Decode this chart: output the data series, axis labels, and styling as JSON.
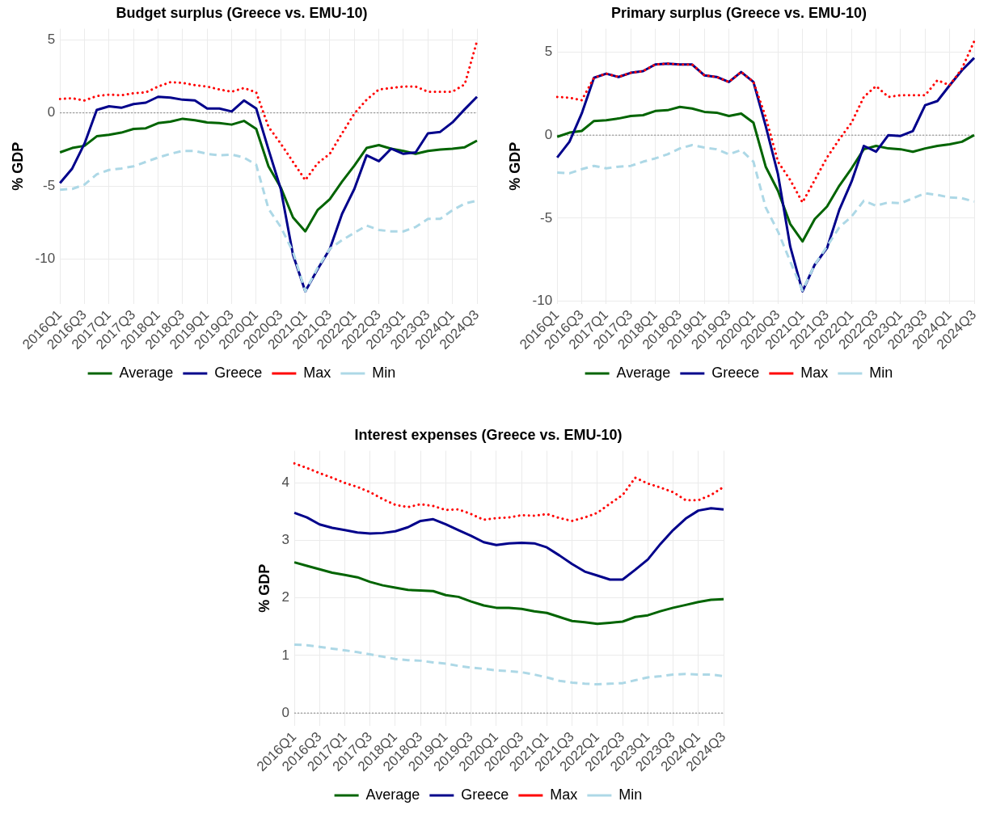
{
  "chart_data": [
    {
      "type": "line",
      "title": "Budget surplus (Greece vs. EMU-10)",
      "ylabel": "% GDP",
      "categories": [
        "2016Q1",
        null,
        "2016Q3",
        null,
        "2017Q1",
        null,
        "2017Q3",
        null,
        "2018Q1",
        null,
        "2018Q3",
        null,
        "2019Q1",
        null,
        "2019Q3",
        null,
        "2020Q1",
        null,
        "2020Q3",
        null,
        "2021Q1",
        null,
        "2021Q3",
        null,
        "2022Q1",
        null,
        "2022Q3",
        null,
        "2023Q1",
        null,
        "2023Q3",
        null,
        "2024Q1",
        null,
        "2024Q3"
      ],
      "series": [
        {
          "name": "Average",
          "color": "#006400",
          "line_style": "solid",
          "values": [
            -2.7,
            -2.4,
            -2.25,
            -1.6,
            -1.5,
            -1.35,
            -1.1,
            -1.05,
            -0.7,
            -0.6,
            -0.4,
            -0.5,
            -0.65,
            -0.7,
            -0.8,
            -0.55,
            -1.1,
            -3.65,
            -5.1,
            -7.15,
            -8.1,
            -6.65,
            -5.9,
            -4.7,
            -3.6,
            -2.4,
            -2.2,
            -2.45,
            -2.6,
            -2.8,
            -2.6,
            -2.5,
            -2.45,
            -2.35,
            -1.9
          ]
        },
        {
          "name": "Greece",
          "color": "#00008b",
          "line_style": "solid",
          "values": [
            -4.8,
            -3.8,
            -2.1,
            0.2,
            0.45,
            0.35,
            0.6,
            0.7,
            1.1,
            1.05,
            0.9,
            0.85,
            0.3,
            0.3,
            0.1,
            0.85,
            0.3,
            -2.5,
            -5.2,
            -9.7,
            -12.2,
            -10.7,
            -9.3,
            -6.9,
            -5.2,
            -2.9,
            -3.3,
            -2.45,
            -2.8,
            -2.7,
            -1.4,
            -1.3,
            -0.65,
            0.25,
            1.1
          ]
        },
        {
          "name": "Max",
          "color": "#ff0000",
          "line_style": "dotted",
          "values": [
            0.95,
            1.0,
            0.85,
            1.15,
            1.25,
            1.2,
            1.35,
            1.4,
            1.8,
            2.1,
            2.05,
            1.9,
            1.8,
            1.6,
            1.45,
            1.7,
            1.4,
            -0.95,
            -2.1,
            -3.35,
            -4.6,
            -3.45,
            -2.8,
            -1.4,
            -0.05,
            0.9,
            1.6,
            1.7,
            1.8,
            1.8,
            1.45,
            1.45,
            1.45,
            1.95,
            4.9
          ]
        },
        {
          "name": "Min",
          "color": "#add8e6",
          "line_style": "dashed",
          "values": [
            -5.25,
            -5.2,
            -4.9,
            -4.2,
            -3.9,
            -3.8,
            -3.65,
            -3.35,
            -3.05,
            -2.8,
            -2.6,
            -2.6,
            -2.8,
            -2.9,
            -2.85,
            -3.05,
            -3.55,
            -6.55,
            -7.8,
            -9.5,
            -12.2,
            -10.6,
            -9.3,
            -8.7,
            -8.2,
            -7.7,
            -8.0,
            -8.1,
            -8.1,
            -7.8,
            -7.25,
            -7.25,
            -6.65,
            -6.2,
            -6.0
          ]
        }
      ],
      "ylim": [
        -13.05,
        5.75
      ],
      "yticks": [
        -10,
        -5,
        0,
        5
      ],
      "grid": true,
      "legend": "bottom",
      "ref_lines": [
        {
          "axis": "y",
          "value": 0,
          "color": "#808080",
          "line_style": "dotted"
        }
      ]
    },
    {
      "type": "line",
      "title": "Primary surplus (Greece vs. EMU-10)",
      "ylabel": "% GDP",
      "categories": [
        "2016Q1",
        null,
        "2016Q3",
        null,
        "2017Q1",
        null,
        "2017Q3",
        null,
        "2018Q1",
        null,
        "2018Q3",
        null,
        "2019Q1",
        null,
        "2019Q3",
        null,
        "2020Q1",
        null,
        "2020Q3",
        null,
        "2021Q1",
        null,
        "2021Q3",
        null,
        "2022Q1",
        null,
        "2022Q3",
        null,
        "2023Q1",
        null,
        "2023Q3",
        null,
        "2024Q1",
        null,
        "2024Q3"
      ],
      "series": [
        {
          "name": "Average",
          "color": "#006400",
          "line_style": "solid",
          "values": [
            -0.1,
            0.15,
            0.25,
            0.85,
            0.9,
            1.0,
            1.15,
            1.2,
            1.45,
            1.5,
            1.7,
            1.6,
            1.4,
            1.35,
            1.15,
            1.3,
            0.75,
            -1.9,
            -3.35,
            -5.35,
            -6.4,
            -5.05,
            -4.3,
            -3.05,
            -2.0,
            -0.85,
            -0.65,
            -0.8,
            -0.85,
            -1.0,
            -0.8,
            -0.65,
            -0.55,
            -0.4,
            0.0
          ]
        },
        {
          "name": "Greece",
          "color": "#00008b",
          "line_style": "solid",
          "values": [
            -1.35,
            -0.4,
            1.3,
            3.45,
            3.7,
            3.5,
            3.75,
            3.85,
            4.25,
            4.3,
            4.25,
            4.25,
            3.6,
            3.5,
            3.2,
            3.8,
            3.2,
            0.55,
            -2.35,
            -6.7,
            -9.4,
            -7.8,
            -6.8,
            -4.5,
            -2.8,
            -0.65,
            -1.0,
            0.0,
            -0.05,
            0.25,
            1.8,
            2.05,
            3.0,
            3.9,
            4.65
          ]
        },
        {
          "name": "Max",
          "color": "#ff0000",
          "line_style": "dotted",
          "values": [
            2.3,
            2.25,
            2.1,
            3.45,
            3.7,
            3.5,
            3.75,
            3.85,
            4.25,
            4.3,
            4.25,
            4.25,
            3.6,
            3.5,
            3.2,
            3.8,
            3.2,
            1.1,
            -1.6,
            -2.7,
            -4.05,
            -2.7,
            -1.35,
            -0.25,
            0.75,
            2.3,
            2.95,
            2.3,
            2.4,
            2.4,
            2.4,
            3.3,
            3.0,
            4.0,
            5.65
          ]
        },
        {
          "name": "Min",
          "color": "#add8e6",
          "line_style": "dashed",
          "values": [
            -2.25,
            -2.3,
            -2.05,
            -1.85,
            -2.0,
            -1.9,
            -1.85,
            -1.6,
            -1.4,
            -1.15,
            -0.8,
            -0.6,
            -0.75,
            -0.85,
            -1.15,
            -0.9,
            -1.6,
            -4.35,
            -5.8,
            -7.6,
            -9.35,
            -7.8,
            -6.7,
            -5.55,
            -4.9,
            -3.95,
            -4.25,
            -4.05,
            -4.1,
            -3.8,
            -3.5,
            -3.6,
            -3.75,
            -3.8,
            -4.0
          ]
        }
      ],
      "ylim": [
        -10.15,
        6.4
      ],
      "yticks": [
        -10,
        -5,
        0,
        5
      ],
      "grid": true,
      "legend": "bottom",
      "ref_lines": [
        {
          "axis": "y",
          "value": 0,
          "color": "#808080",
          "line_style": "dotted"
        }
      ]
    },
    {
      "type": "line",
      "title": "Interest expenses (Greece vs. EMU-10)",
      "ylabel": "% GDP",
      "categories": [
        "2016Q1",
        null,
        "2016Q3",
        null,
        "2017Q1",
        null,
        "2017Q3",
        null,
        "2018Q1",
        null,
        "2018Q3",
        null,
        "2019Q1",
        null,
        "2019Q3",
        null,
        "2020Q1",
        null,
        "2020Q3",
        null,
        "2021Q1",
        null,
        "2021Q3",
        null,
        "2022Q1",
        null,
        "2022Q3",
        null,
        "2023Q1",
        null,
        "2023Q3",
        null,
        "2024Q1",
        null,
        "2024Q3"
      ],
      "series": [
        {
          "name": "Average",
          "color": "#006400",
          "line_style": "solid",
          "values": [
            2.62,
            2.56,
            2.5,
            2.44,
            2.4,
            2.36,
            2.28,
            2.22,
            2.18,
            2.14,
            2.13,
            2.12,
            2.05,
            2.02,
            1.94,
            1.87,
            1.83,
            1.83,
            1.81,
            1.77,
            1.74,
            1.67,
            1.6,
            1.58,
            1.55,
            1.57,
            1.59,
            1.67,
            1.7,
            1.77,
            1.83,
            1.88,
            1.93,
            1.97,
            1.98
          ]
        },
        {
          "name": "Greece",
          "color": "#00008b",
          "line_style": "solid",
          "values": [
            3.48,
            3.4,
            3.28,
            3.22,
            3.18,
            3.14,
            3.12,
            3.13,
            3.16,
            3.23,
            3.34,
            3.37,
            3.28,
            3.18,
            3.08,
            2.97,
            2.92,
            2.95,
            2.96,
            2.95,
            2.88,
            2.74,
            2.59,
            2.46,
            2.39,
            2.32,
            2.32,
            2.49,
            2.67,
            2.94,
            3.18,
            3.38,
            3.52,
            3.56,
            3.54
          ]
        },
        {
          "name": "Max",
          "color": "#ff0000",
          "line_style": "dotted",
          "values": [
            4.34,
            4.26,
            4.17,
            4.09,
            4.0,
            3.93,
            3.84,
            3.72,
            3.62,
            3.58,
            3.63,
            3.6,
            3.53,
            3.54,
            3.46,
            3.36,
            3.39,
            3.4,
            3.44,
            3.43,
            3.46,
            3.39,
            3.34,
            3.4,
            3.48,
            3.64,
            3.79,
            4.09,
            3.99,
            3.92,
            3.84,
            3.7,
            3.7,
            3.79,
            3.93
          ]
        },
        {
          "name": "Min",
          "color": "#add8e6",
          "line_style": "dashed",
          "values": [
            1.19,
            1.18,
            1.15,
            1.12,
            1.09,
            1.06,
            1.02,
            0.98,
            0.94,
            0.92,
            0.91,
            0.88,
            0.86,
            0.82,
            0.79,
            0.77,
            0.74,
            0.73,
            0.71,
            0.67,
            0.62,
            0.56,
            0.53,
            0.51,
            0.5,
            0.51,
            0.52,
            0.57,
            0.62,
            0.64,
            0.67,
            0.68,
            0.67,
            0.67,
            0.64
          ]
        }
      ],
      "ylim": [
        -0.22,
        4.56
      ],
      "yticks": [
        0,
        1,
        2,
        3,
        4
      ],
      "grid": true,
      "legend": "bottom",
      "ref_lines": [
        {
          "axis": "y",
          "value": 0,
          "color": "#808080",
          "line_style": "dotted"
        }
      ]
    }
  ]
}
